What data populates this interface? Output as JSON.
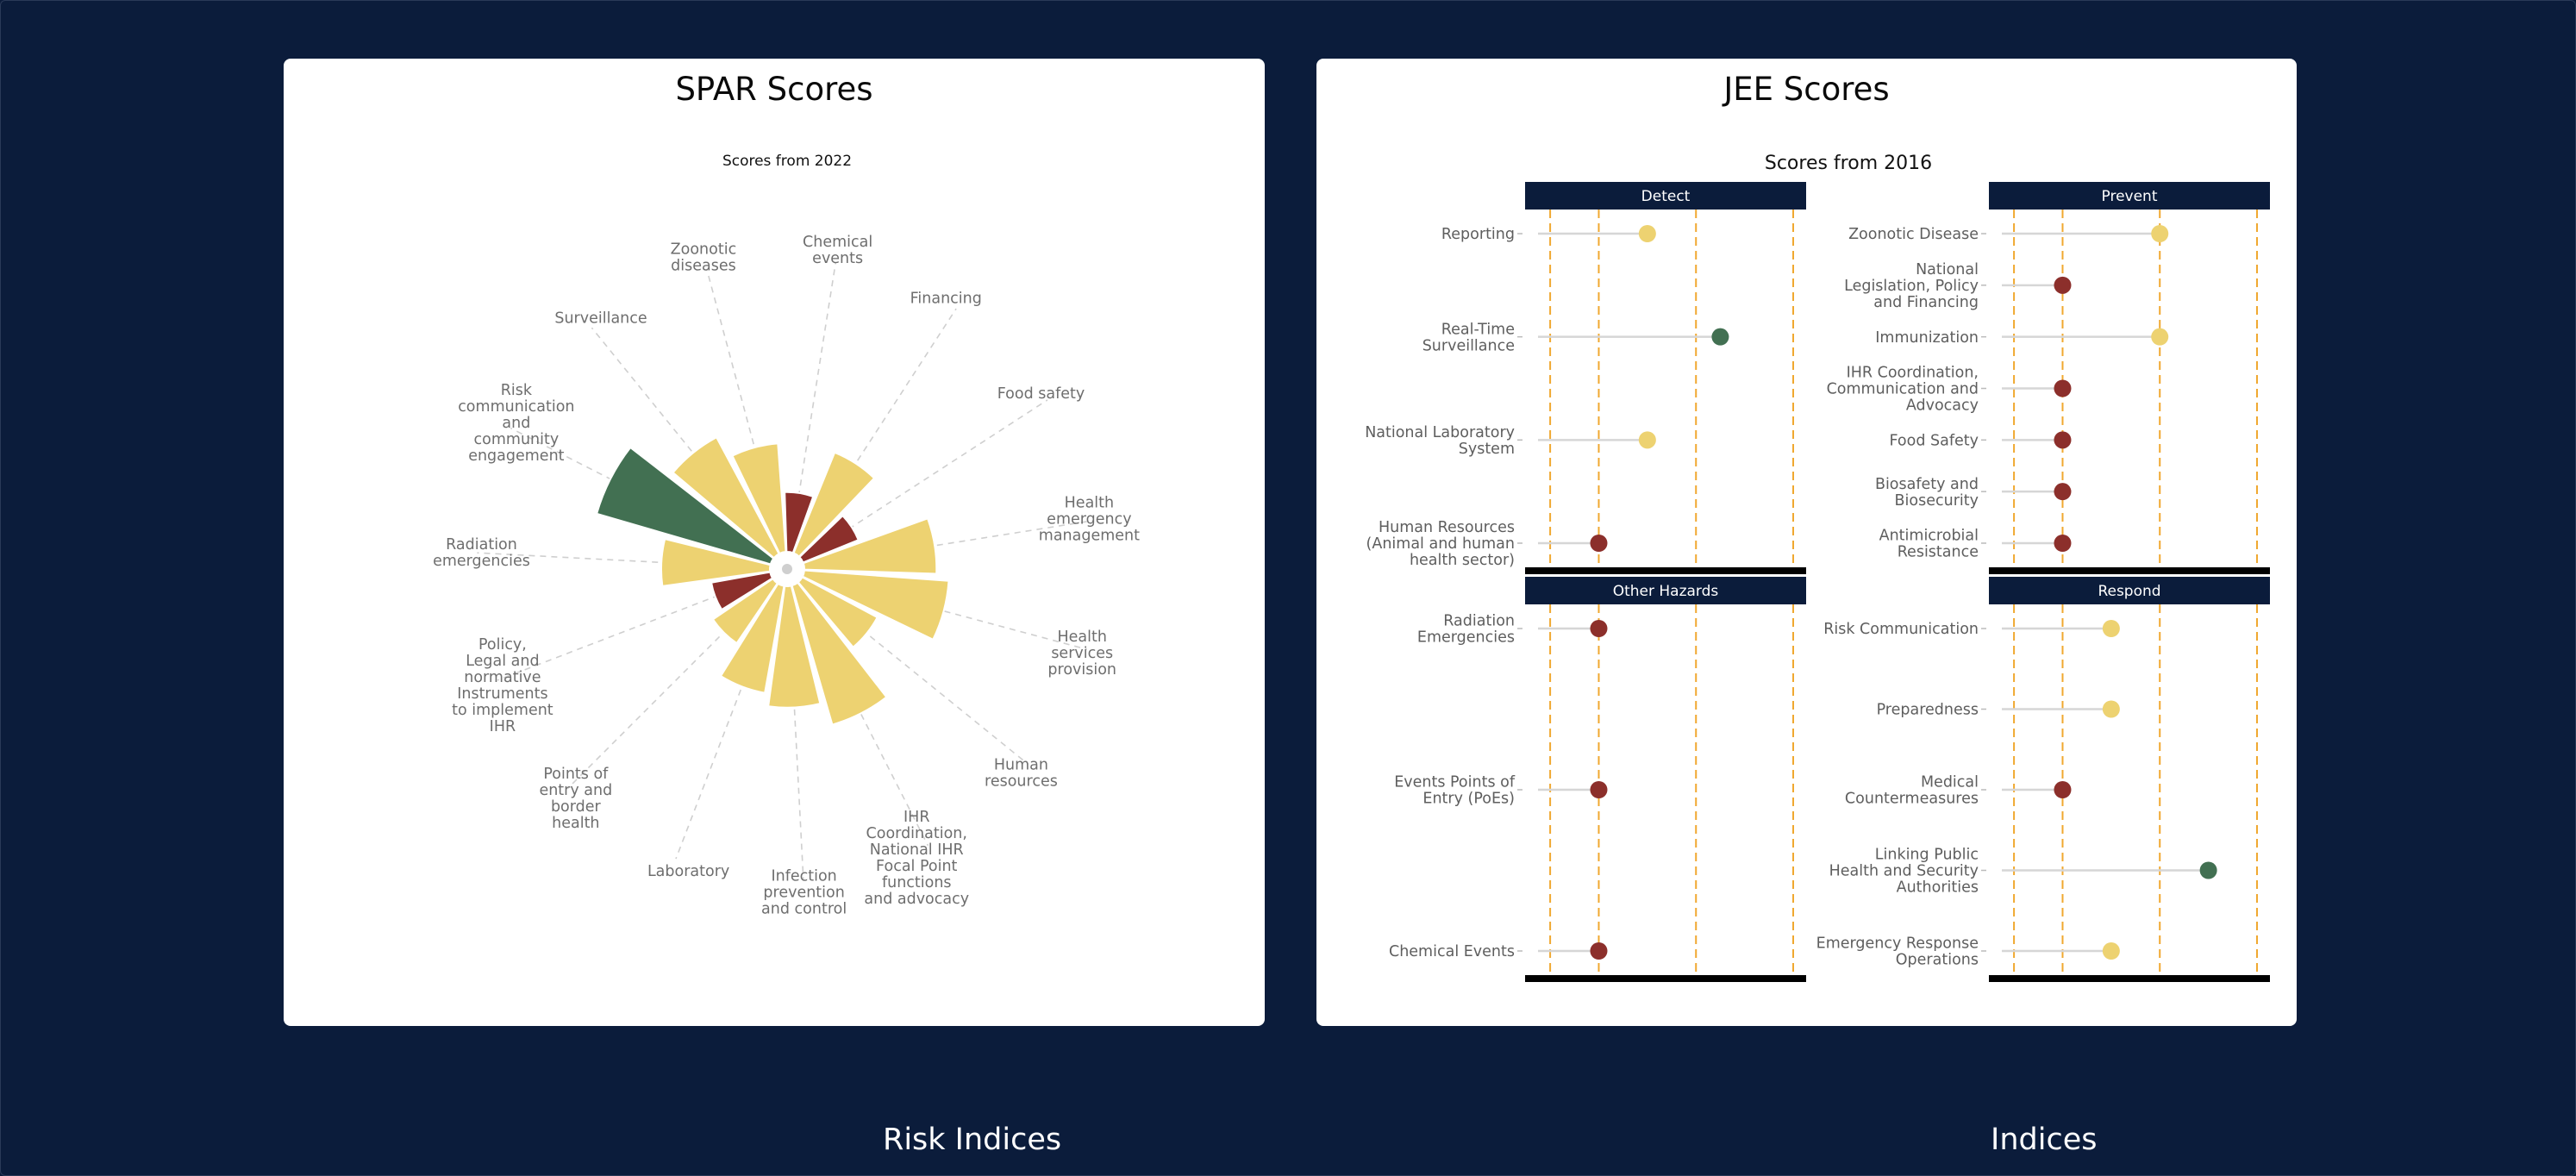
{
  "colors": {
    "background": "#0b1c3b",
    "card": "#ffffff",
    "yellow": "#edd271",
    "red": "#8c2f2b",
    "green": "#427052",
    "header": "#0b1c3b",
    "guide": "#f0a830"
  },
  "spar": {
    "card_title": "SPAR Scores",
    "subtitle": "Scores from 2022"
  },
  "jee": {
    "card_title": "JEE Scores",
    "subtitle": "Scores from 2016"
  },
  "footer": {
    "left_title": "Risk Indices",
    "right_title": "Indices"
  },
  "chart_data": [
    {
      "type": "polar-bar",
      "title": "SPAR Scores",
      "subtitle": "Scores from 2022",
      "categories": [
        "Chemical\nevents",
        "Financing",
        "Food safety",
        "Health\nemergency\nmanagement",
        "Health\nservices\nprovision",
        "Human\nresources",
        "IHR\nCoordination,\nNational IHR\nFocal Point\nfunctions\nand advocacy",
        "Infection\nprevention\nand control",
        "Laboratory",
        "Points of\nentry and\nborder\nhealth",
        "Policy,\nLegal and\nnormative\nInstruments\nto implement\nIHR",
        "Radiation\nemergencies",
        "Risk\ncommunication\nand\ncommunity\nengagement",
        "Surveillance",
        "Zoonotic\ndiseases"
      ],
      "values": [
        33,
        60,
        33,
        73,
        80,
        47,
        80,
        67,
        60,
        40,
        33,
        60,
        100,
        73,
        60
      ],
      "colors": [
        "red",
        "yellow",
        "red",
        "yellow",
        "yellow",
        "yellow",
        "yellow",
        "yellow",
        "yellow",
        "yellow",
        "red",
        "yellow",
        "green",
        "yellow",
        "yellow"
      ]
    },
    {
      "type": "lollipop",
      "title": "JEE Scores",
      "subtitle": "Scores from 2016",
      "panels": [
        {
          "name": "Detect",
          "items": [
            {
              "label": "Reporting",
              "value": 3,
              "color": "yellow"
            },
            {
              "label": "Real-Time\nSurveillance",
              "value": 4.5,
              "color": "green"
            },
            {
              "label": "National Laboratory\nSystem",
              "value": 3,
              "color": "yellow"
            },
            {
              "label": "Human Resources\n(Animal and human\nhealth sector)",
              "value": 2,
              "color": "red"
            }
          ]
        },
        {
          "name": "Prevent",
          "items": [
            {
              "label": "Zoonotic Disease",
              "value": 4,
              "color": "yellow"
            },
            {
              "label": "National\nLegislation, Policy\nand Financing",
              "value": 2,
              "color": "red"
            },
            {
              "label": "Immunization",
              "value": 4,
              "color": "yellow"
            },
            {
              "label": "IHR Coordination,\nCommunication and\nAdvocacy",
              "value": 2,
              "color": "red"
            },
            {
              "label": "Food Safety",
              "value": 2,
              "color": "red"
            },
            {
              "label": "Biosafety and\nBiosecurity",
              "value": 2,
              "color": "red"
            },
            {
              "label": "Antimicrobial\nResistance",
              "value": 2,
              "color": "red"
            }
          ]
        },
        {
          "name": "Other Hazards",
          "items": [
            {
              "label": "Radiation\nEmergencies",
              "value": 2,
              "color": "red"
            },
            {
              "label": "Events Points of\nEntry (PoEs)",
              "value": 2,
              "color": "red"
            },
            {
              "label": "Chemical Events",
              "value": 2,
              "color": "red"
            }
          ]
        },
        {
          "name": "Respond",
          "items": [
            {
              "label": "Risk Communication",
              "value": 3,
              "color": "yellow"
            },
            {
              "label": "Preparedness",
              "value": 3,
              "color": "yellow"
            },
            {
              "label": "Medical\nCountermeasures",
              "value": 2,
              "color": "red"
            },
            {
              "label": "Linking Public\nHealth and Security\nAuthorities",
              "value": 5,
              "color": "green"
            },
            {
              "label": "Emergency Response\nOperations",
              "value": 3,
              "color": "yellow"
            }
          ]
        }
      ],
      "guide_lines": [
        1,
        2,
        4,
        6
      ],
      "xlim": [
        0.75,
        6
      ]
    }
  ]
}
